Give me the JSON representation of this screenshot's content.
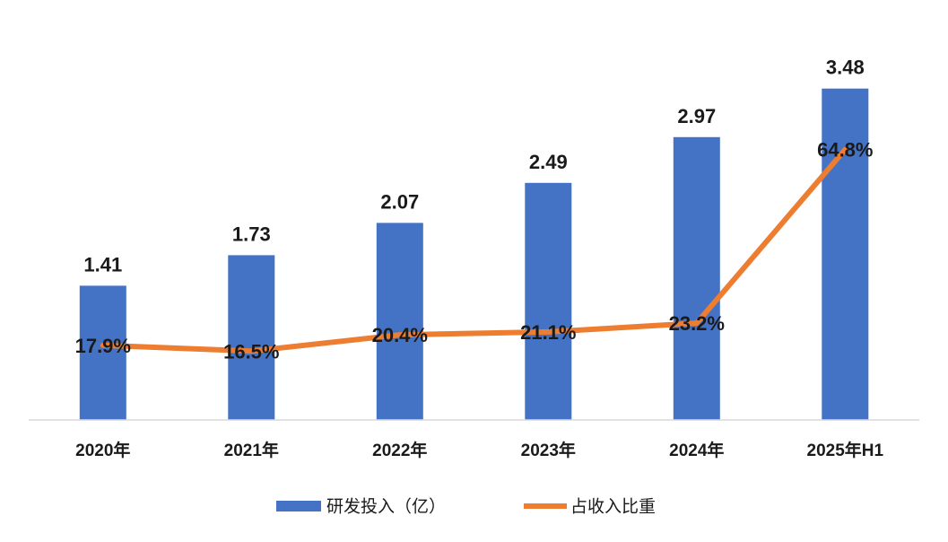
{
  "chart_data": {
    "type": "bar",
    "categories": [
      "2020年",
      "2021年",
      "2022年",
      "2023年",
      "2024年",
      "2025年H1"
    ],
    "series": [
      {
        "name": "研发投入（亿）",
        "type": "bar",
        "axis": "left",
        "values": [
          1.41,
          1.73,
          2.07,
          2.49,
          2.97,
          3.48
        ],
        "labels": [
          "1.41",
          "1.73",
          "2.07",
          "2.49",
          "2.97",
          "3.48"
        ],
        "color": "#4472C4"
      },
      {
        "name": "占收入比重",
        "type": "line",
        "axis": "right",
        "values": [
          17.9,
          16.5,
          20.4,
          21.1,
          23.2,
          64.8
        ],
        "labels": [
          "17.9%",
          "16.5%",
          "20.4%",
          "21.1%",
          "23.2%",
          "64.8%"
        ],
        "color": "#ED7D31"
      }
    ],
    "ylim_left": [
      0,
      3.6
    ],
    "ylim_right": [
      0,
      100
    ],
    "legend_position": "bottom",
    "grid": false
  }
}
